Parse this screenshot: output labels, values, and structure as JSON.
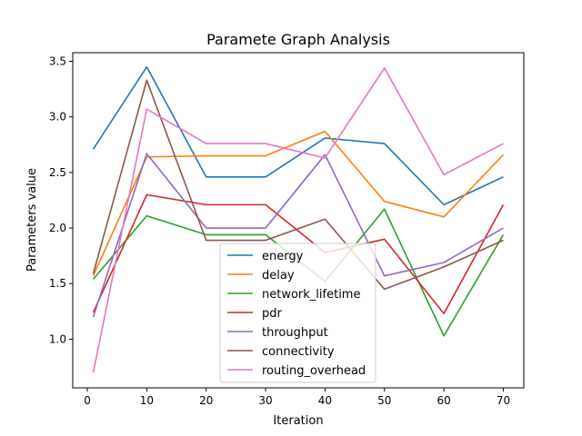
{
  "chart_data": {
    "type": "line",
    "title": "Paramete Graph Analysis",
    "xlabel": "Iteration",
    "ylabel": "Parameters value",
    "x": [
      1,
      10,
      20,
      30,
      40,
      50,
      60,
      70
    ],
    "xlim": [
      -2.45,
      73.45
    ],
    "ylim": [
      0.562,
      3.578
    ],
    "xticks": [
      0,
      10,
      20,
      30,
      40,
      50,
      60,
      70
    ],
    "yticks": [
      1.0,
      1.5,
      2.0,
      2.5,
      3.0,
      3.5
    ],
    "xtick_labels": [
      "0",
      "10",
      "20",
      "30",
      "40",
      "50",
      "60",
      "70"
    ],
    "ytick_labels": [
      "1.0",
      "1.5",
      "2.0",
      "2.5",
      "3.0",
      "3.5"
    ],
    "grid": false,
    "legend_position": "lower-center",
    "series": [
      {
        "name": "energy",
        "color": "#1f77b4",
        "values": [
          2.71,
          3.45,
          2.46,
          2.46,
          2.81,
          2.76,
          2.21,
          2.46
        ]
      },
      {
        "name": "delay",
        "color": "#ff7f0e",
        "values": [
          1.57,
          2.64,
          2.65,
          2.65,
          2.87,
          2.24,
          2.1,
          2.66
        ]
      },
      {
        "name": "network_lifetime",
        "color": "#2ca02c",
        "values": [
          1.54,
          2.11,
          1.94,
          1.94,
          1.52,
          2.17,
          1.03,
          1.94
        ]
      },
      {
        "name": "pdr",
        "color": "#d62728",
        "values": [
          1.24,
          2.3,
          2.21,
          2.21,
          1.78,
          1.9,
          1.23,
          2.21
        ]
      },
      {
        "name": "throughput",
        "color": "#9467bd",
        "values": [
          1.2,
          2.67,
          2.0,
          2.0,
          2.66,
          1.57,
          1.69,
          2.0
        ]
      },
      {
        "name": "connectivity",
        "color": "#8c564b",
        "values": [
          1.59,
          3.33,
          1.89,
          1.89,
          2.08,
          1.45,
          1.65,
          1.89
        ]
      },
      {
        "name": "routing_overhead",
        "color": "#e377c2",
        "values": [
          0.7,
          3.07,
          2.76,
          2.76,
          2.63,
          3.44,
          2.48,
          2.76
        ]
      }
    ]
  }
}
